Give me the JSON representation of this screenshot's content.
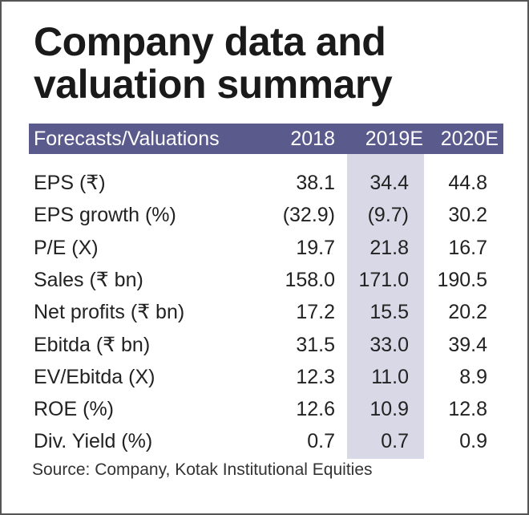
{
  "title": [
    "Company data and",
    "valuation summary"
  ],
  "header": [
    "Forecasts/Valuations",
    "2018",
    "2019E",
    "2020E"
  ],
  "rows": [
    [
      "EPS (₹)",
      "38.1",
      "34.4",
      "44.8"
    ],
    [
      "EPS growth (%)",
      "(32.9)",
      "(9.7)",
      "30.2"
    ],
    [
      "P/E (X)",
      "19.7",
      "21.8",
      "16.7"
    ],
    [
      "Sales (₹ bn)",
      "158.0",
      "171.0",
      "190.5"
    ],
    [
      "Net profits (₹ bn)",
      "17.2",
      "15.5",
      "20.2"
    ],
    [
      "Ebitda (₹ bn)",
      "31.5",
      "33.0",
      "39.4"
    ],
    [
      "EV/Ebitda (X)",
      "12.3",
      "11.0",
      "8.9"
    ],
    [
      "ROE (%)",
      "12.6",
      "10.9",
      "12.8"
    ],
    [
      "Div. Yield (%)",
      "0.7",
      "0.7",
      "0.9"
    ]
  ],
  "source": "Source: Company, Kotak Institutional Equities",
  "colors": {
    "header_bg": "#5b5a8c",
    "highlight_col": "#d9d8e7"
  }
}
